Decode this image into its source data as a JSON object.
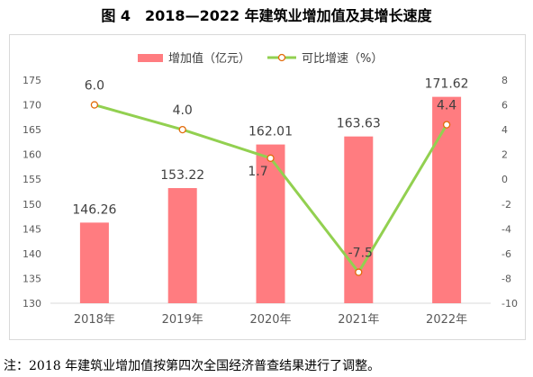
{
  "figure_title": "图 4　2018—2022 年建筑业增加值及其增长速度",
  "note": "注：2018 年建筑业增加值按第四次全国经济普查结果进行了调整。",
  "colors": {
    "bar": "#ff7c80",
    "line": "#92d050",
    "marker_fill": "#ffffff",
    "marker_stroke": "#e26b0a"
  },
  "chart_data": {
    "type": "bar",
    "categories": [
      "2018年",
      "2019年",
      "2020年",
      "2021年",
      "2022年"
    ],
    "series": [
      {
        "name": "增加值（亿元）",
        "type": "bar",
        "axis": "left",
        "values": [
          146.26,
          153.22,
          162.01,
          163.63,
          171.62
        ],
        "labels": [
          "146.26",
          "153.22",
          "162.01",
          "163.63",
          "171.62"
        ]
      },
      {
        "name": "可比增速（%）",
        "type": "line",
        "axis": "right",
        "values": [
          6.0,
          4.0,
          1.7,
          -7.5,
          4.4
        ],
        "labels": [
          "6.0",
          "4.0",
          "1.7",
          "-7.5",
          "4.4"
        ]
      }
    ],
    "y_left": {
      "min": 130,
      "max": 175,
      "step": 5,
      "ticks": [
        "130",
        "135",
        "140",
        "145",
        "150",
        "155",
        "160",
        "165",
        "170",
        "175"
      ]
    },
    "y_right": {
      "min": -10,
      "max": 8,
      "step": 2,
      "ticks": [
        "-10",
        "-8",
        "-6",
        "-4",
        "-2",
        "0",
        "2",
        "4",
        "6",
        "8"
      ]
    },
    "legend": "top-center",
    "grid": false
  }
}
